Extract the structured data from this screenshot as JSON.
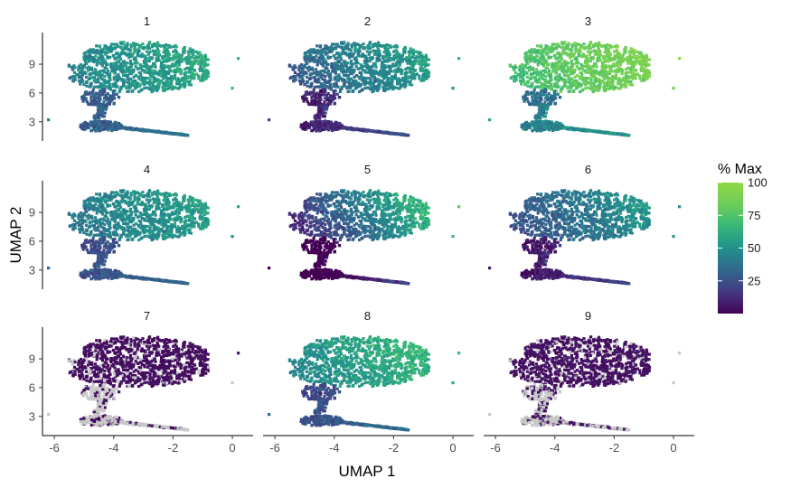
{
  "chart_data": {
    "type": "scatter",
    "xlabel": "UMAP 1",
    "ylabel": "UMAP 2",
    "xlim": [
      -6.4,
      0.7
    ],
    "ylim": [
      1.0,
      12.3
    ],
    "x_ticks": [
      -6,
      -4,
      -2,
      0
    ],
    "y_ticks": [
      3,
      6,
      9
    ],
    "x_tick_labels": [
      "-6",
      "-4",
      "-2",
      "0"
    ],
    "y_tick_labels": [
      "3",
      "6",
      "9"
    ],
    "facets": [
      {
        "title": "1",
        "mean": 52,
        "gradient": 8,
        "low_shadow": 12,
        "zero_frac": 0.0
      },
      {
        "title": "2",
        "mean": 42,
        "gradient": 14,
        "low_shadow": 14,
        "zero_frac": 0.0
      },
      {
        "title": "3",
        "mean": 80,
        "gradient": 10,
        "low_shadow": 25,
        "zero_frac": 0.0
      },
      {
        "title": "4",
        "mean": 48,
        "gradient": 8,
        "low_shadow": 12,
        "zero_frac": 0.0
      },
      {
        "title": "5",
        "mean": 38,
        "gradient": 28,
        "low_shadow": 14,
        "zero_frac": 0.0
      },
      {
        "title": "6",
        "mean": 38,
        "gradient": 14,
        "low_shadow": 14,
        "zero_frac": 0.0
      },
      {
        "title": "7",
        "mean": 4,
        "gradient": 0,
        "low_shadow": 0,
        "zero_frac": 0.35
      },
      {
        "title": "8",
        "mean": 56,
        "gradient": 10,
        "low_shadow": 18,
        "zero_frac": 0.0
      },
      {
        "title": "9",
        "mean": 5,
        "gradient": 0,
        "low_shadow": 0,
        "zero_frac": 0.3
      }
    ],
    "color_scale": {
      "name": "viridis (truncated)",
      "min": 0,
      "max": 100,
      "colors": [
        "#440154",
        "#443983",
        "#31688e",
        "#21918c",
        "#35b779",
        "#6ece58",
        "#90d743"
      ],
      "na_color": "#c8c8c8"
    },
    "legend": {
      "title": "% Max",
      "ticks": [
        25,
        50,
        75,
        100
      ],
      "tick_labels": [
        "25",
        "50",
        "75",
        "100"
      ],
      "position": "right"
    },
    "grid": false
  }
}
